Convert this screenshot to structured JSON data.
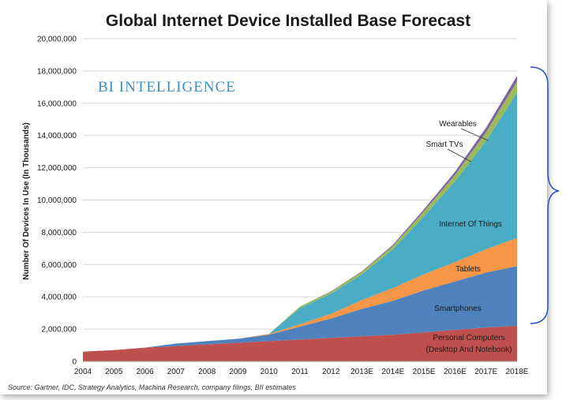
{
  "chart_data": {
    "type": "area",
    "title": "Global Internet Device Installed Base Forecast",
    "ylabel": "Number Of Devices In Use (In Thousands)",
    "xlabel": "",
    "categories": [
      "2004",
      "2005",
      "2006",
      "2007",
      "2008",
      "2009",
      "2010",
      "2011",
      "2012",
      "2013E",
      "2014E",
      "2015E",
      "2016E",
      "2017E",
      "2018E"
    ],
    "ylim": [
      0,
      20000000
    ],
    "yticks": [
      "0",
      "2,000,000",
      "4,000,000",
      "6,000,000",
      "8,000,000",
      "10,000,000",
      "12,000,000",
      "14,000,000",
      "16,000,000",
      "18,000,000",
      "20,000,000"
    ],
    "stacked": true,
    "grid": true,
    "series": [
      {
        "name": "Personal Computers (Desktop And Notebook)",
        "color": "#c0504d",
        "values": [
          600000,
          700000,
          850000,
          950000,
          1050000,
          1150000,
          1250000,
          1350000,
          1450000,
          1550000,
          1650000,
          1800000,
          1950000,
          2100000,
          2200000
        ]
      },
      {
        "name": "Smartphones",
        "color": "#4f81bd",
        "values": [
          0,
          0,
          0,
          150000,
          200000,
          250000,
          400000,
          800000,
          1200000,
          1700000,
          2100000,
          2600000,
          3000000,
          3400000,
          3700000
        ]
      },
      {
        "name": "Tablets",
        "color": "#f79646",
        "values": [
          0,
          0,
          0,
          0,
          0,
          0,
          50000,
          150000,
          300000,
          550000,
          800000,
          1000000,
          1200000,
          1450000,
          1750000
        ]
      },
      {
        "name": "Internet Of Things",
        "color": "#4bacc6",
        "values": [
          0,
          0,
          0,
          0,
          0,
          0,
          0,
          1000000,
          1250000,
          1600000,
          2400000,
          3600000,
          5000000,
          6700000,
          9000000
        ]
      },
      {
        "name": "Smart TVs",
        "color": "#9bbb59",
        "values": [
          0,
          0,
          0,
          0,
          0,
          0,
          0,
          100000,
          120000,
          150000,
          200000,
          300000,
          400000,
          550000,
          700000
        ]
      },
      {
        "name": "Wearables",
        "color": "#8064a2",
        "values": [
          0,
          0,
          0,
          0,
          0,
          0,
          0,
          0,
          20000,
          40000,
          80000,
          130000,
          200000,
          280000,
          350000
        ]
      }
    ],
    "annotations": {
      "pc_line1": "Personal Computers",
      "pc_line2": "(Desktop And Notebook)",
      "smartphones": "Smartphones",
      "tablets": "Tablets",
      "iot": "Internet Of Things",
      "smart_tvs": "Smart TVs",
      "wearables": "Wearables"
    },
    "brand": "BI INTELLIGENCE",
    "source": "Source: Gartner, IDC, Strategy Analytics, Machina Research, company filings, BII estimates"
  }
}
